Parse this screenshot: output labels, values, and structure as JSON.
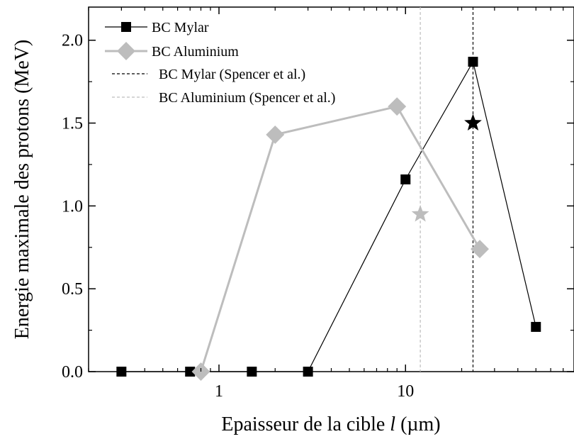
{
  "chart_data": {
    "type": "line",
    "xscale": "log",
    "xlim": [
      0.2,
      80
    ],
    "ylim": [
      0,
      2.2
    ],
    "xlabel": "Epaisseur de la cible ",
    "xlabel_var": "l",
    "xlabel_unit": " (µm)",
    "ylabel": "Energie maximale des protons (MeV)",
    "x_ticks": [
      {
        "value": 1,
        "label": "1"
      },
      {
        "value": 10,
        "label": "10"
      }
    ],
    "y_ticks": [
      {
        "value": 0.0,
        "label": "0.0"
      },
      {
        "value": 0.5,
        "label": "0.5"
      },
      {
        "value": 1.0,
        "label": "1.0"
      },
      {
        "value": 1.5,
        "label": "1.5"
      },
      {
        "value": 2.0,
        "label": "2.0"
      }
    ],
    "series": [
      {
        "name": "BC Mylar",
        "kind": "line-marker",
        "marker": "square",
        "color": "#000000",
        "x": [
          0.3,
          0.7,
          1.5,
          3,
          10,
          23,
          50
        ],
        "y": [
          0.0,
          0.0,
          0.0,
          0.0,
          1.16,
          1.87,
          0.27
        ]
      },
      {
        "name": "BC Aluminium",
        "kind": "line-marker",
        "marker": "diamond",
        "color": "#bdbdbd",
        "x": [
          0.8,
          2,
          9,
          25
        ],
        "y": [
          0.0,
          1.43,
          1.6,
          0.74
        ]
      },
      {
        "name": "BC Mylar (Spencer et al.)",
        "kind": "vline",
        "color": "#000000",
        "x": 23,
        "star": {
          "x": 23,
          "y": 1.5
        }
      },
      {
        "name": "BC Aluminium (Spencer et al.)",
        "kind": "vline",
        "color": "#bdbdbd",
        "x": 12,
        "star": {
          "x": 12,
          "y": 0.95
        }
      }
    ],
    "legend_position": "top-left",
    "grid": false
  }
}
